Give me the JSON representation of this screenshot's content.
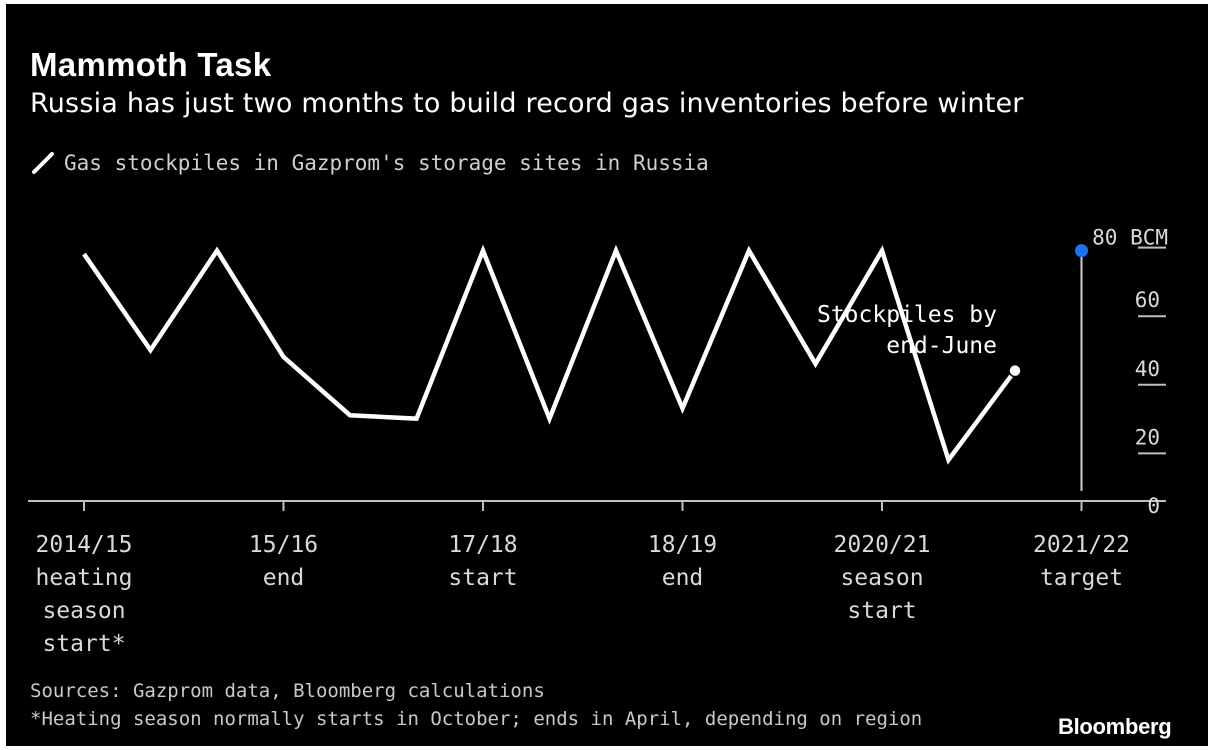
{
  "title": "Mammoth Task",
  "subtitle": "Russia has just two months to build record gas inventories before winter",
  "legend_label": "Gas stockpiles in Gazprom's storage sites in Russia",
  "source": "Sources: Gazprom data, Bloomberg calculations",
  "footnote": "*Heating season normally starts in October; ends in April, depending on region",
  "brand": "Bloomberg",
  "colors": {
    "background": "#000000",
    "series": "#ffffff",
    "target": "#1e6ff5",
    "text": "#ffffff"
  },
  "chart_data": {
    "type": "line",
    "y_unit": "BCM",
    "ylim": [
      0,
      80
    ],
    "y_ticks": [
      "80 BCM",
      "60",
      "40",
      "20",
      "0"
    ],
    "y_tick_values": [
      80,
      60,
      40,
      20,
      0
    ],
    "x_tick_labels": [
      [
        "2014/15",
        "heating",
        "season",
        "start*"
      ],
      [
        "15/16",
        "end"
      ],
      [
        "17/18",
        "start"
      ],
      [
        "18/19",
        "end"
      ],
      [
        "2020/21",
        "season",
        "start"
      ],
      [
        "2021/22",
        "target"
      ]
    ],
    "x_tick_positions": [
      0,
      3,
      6,
      9,
      12,
      15
    ],
    "series": [
      {
        "name": "Gas stockpiles in Gazprom's storage sites in Russia",
        "x": [
          0,
          1,
          2,
          3,
          4,
          5,
          6,
          7,
          8,
          9,
          10,
          11,
          12,
          13,
          14
        ],
        "values": [
          72,
          44,
          73,
          42,
          25,
          24,
          73,
          24,
          73,
          27,
          73,
          40,
          73,
          12,
          38
        ]
      }
    ],
    "target": {
      "x": 15,
      "value": 73,
      "label": "2021/22 target"
    },
    "annotation": {
      "lines": [
        "Stockpiles by",
        "end-June"
      ],
      "x": 14,
      "value": 38
    }
  }
}
